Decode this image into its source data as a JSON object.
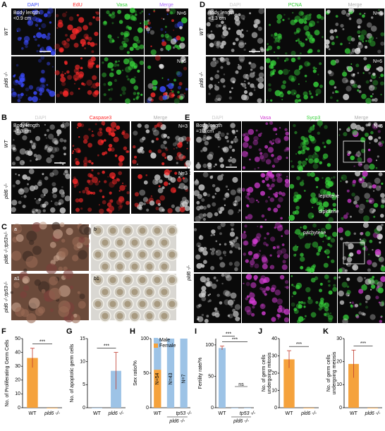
{
  "panels": {
    "A": {
      "letter": "A",
      "channels": [
        "DAPI",
        "EdU",
        "Vasa",
        "Merge"
      ],
      "colors": [
        "#3b4bff",
        "#ff2a2a",
        "#36d13a",
        "#b070ff"
      ],
      "rows": [
        "WT",
        "pld6 -/-"
      ],
      "body_length": [
        "Body length",
        "<0.9 cm"
      ],
      "n_labels": [
        "N=6",
        "N=6"
      ]
    },
    "D": {
      "letter": "D",
      "channels": [
        "DAPI",
        "PCNA",
        "Merge"
      ],
      "colors": [
        "#cccccc",
        "#36d13a",
        "#b0b0b0"
      ],
      "rows": [
        "WT",
        "pld6 -/-"
      ],
      "body_length": [
        "Body length",
        "=1.3 cm"
      ],
      "n_labels": [
        "N=6",
        "N=6"
      ]
    },
    "B": {
      "letter": "B",
      "channels": [
        "DAPI",
        "Caspase3",
        "Merge"
      ],
      "colors": [
        "#cccccc",
        "#ff2a2a",
        "#b0b0b0"
      ],
      "rows": [
        "WT",
        "pld6 -/-"
      ],
      "body_length": [
        "Body length",
        "=1.3 cm"
      ],
      "n_labels": [
        "N=3",
        "N=3"
      ]
    },
    "C": {
      "letter": "C",
      "rows": [
        "pld6 -/-;tp53+/-",
        "pld6 -/-;tp53-/-"
      ],
      "sub": [
        "a",
        "b",
        "a1",
        "b1"
      ]
    },
    "E": {
      "letter": "E",
      "channels": [
        "DAPI",
        "Vasa",
        "Sycp3",
        "Merge"
      ],
      "colors": [
        "#cccccc",
        "#d23cd2",
        "#36d13a",
        "#b0b0b0"
      ],
      "rows": [
        "WT",
        "pld6 -/-"
      ],
      "body_length": [
        "Body length",
        "=1.3 cm"
      ],
      "n_labels": [
        "N=6",
        "N=6"
      ],
      "stages": [
        "leptotene",
        "diplotene",
        "pachytene"
      ]
    }
  },
  "chart_data": [
    {
      "type": "bar",
      "letter": "F",
      "ylabel": [
        "No. of Proliferating Germ Cells"
      ],
      "categories": [
        "WT",
        "pld6 -/-"
      ],
      "values": [
        36,
        0
      ],
      "errors": [
        7,
        0
      ],
      "color": "#f5a23c",
      "ylim": [
        0,
        50
      ],
      "yticks": [
        0,
        10,
        20,
        30,
        40,
        50
      ],
      "annotations": [
        {
          "text": "***",
          "pair": [
            0,
            1
          ]
        }
      ]
    },
    {
      "type": "bar",
      "letter": "G",
      "ylabel": [
        "No. of apoptotic germ cells"
      ],
      "categories": [
        "WT",
        "pld6 -/-"
      ],
      "values": [
        0,
        8
      ],
      "errors": [
        0,
        4
      ],
      "color": "#9dc3e6",
      "ylim": [
        0,
        15
      ],
      "yticks": [
        0,
        5,
        10,
        15
      ],
      "annotations": [
        {
          "text": "***",
          "pair": [
            0,
            1
          ]
        }
      ]
    },
    {
      "type": "stacked_bar",
      "letter": "H",
      "ylabel": [
        "Sex ratio/%"
      ],
      "categories": [
        "WT",
        null,
        null
      ],
      "group_labels": [
        "tp53 -/-",
        "pld6 -/-"
      ],
      "bar_labels": [
        "N=54",
        "N=43",
        "N=7"
      ],
      "series": [
        {
          "name": "Female",
          "color": "#f5a23c",
          "values": [
            55,
            0,
            0
          ]
        },
        {
          "name": "Male",
          "color": "#9dc3e6",
          "values": [
            45,
            100,
            100
          ]
        }
      ],
      "ylim": [
        0,
        100
      ],
      "yticks": [
        0,
        50,
        100
      ]
    },
    {
      "type": "bar",
      "letter": "I",
      "ylabel": [
        "Fertility rate/%"
      ],
      "categories": [
        "WT",
        null,
        null
      ],
      "group_labels": [
        "tp53 -/-",
        "pld6 -/-"
      ],
      "values": [
        95,
        0,
        0
      ],
      "errors": [
        3,
        0,
        0
      ],
      "color": "#9dc3e6",
      "ylim": [
        0,
        110
      ],
      "yticks": [
        0,
        50,
        100
      ],
      "annotations": [
        {
          "text": "***",
          "pair": [
            0,
            2
          ]
        },
        {
          "text": "***",
          "pair": [
            0,
            1
          ]
        },
        {
          "text": "ns",
          "pair": [
            1,
            2
          ]
        }
      ]
    },
    {
      "type": "bar",
      "letter": "J",
      "ylabel": [
        "No. of germ cells",
        "undergoing mitosis"
      ],
      "categories": [
        "WT",
        "pld6 -/-"
      ],
      "values": [
        28,
        0
      ],
      "errors": [
        5,
        0
      ],
      "color": "#f5a23c",
      "ylim": [
        0,
        40
      ],
      "yticks": [
        0,
        10,
        20,
        30,
        40
      ],
      "annotations": [
        {
          "text": "***",
          "pair": [
            0,
            1
          ]
        }
      ]
    },
    {
      "type": "bar",
      "letter": "K",
      "ylabel": [
        "No. of germ cells",
        "undergoing meiosis"
      ],
      "categories": [
        "WT",
        "pld6 -/-"
      ],
      "values": [
        19,
        0
      ],
      "errors": [
        6,
        0
      ],
      "color": "#f5a23c",
      "ylim": [
        0,
        30
      ],
      "yticks": [
        0,
        10,
        20,
        30
      ],
      "annotations": [
        {
          "text": "***",
          "pair": [
            0,
            1
          ]
        }
      ]
    }
  ]
}
